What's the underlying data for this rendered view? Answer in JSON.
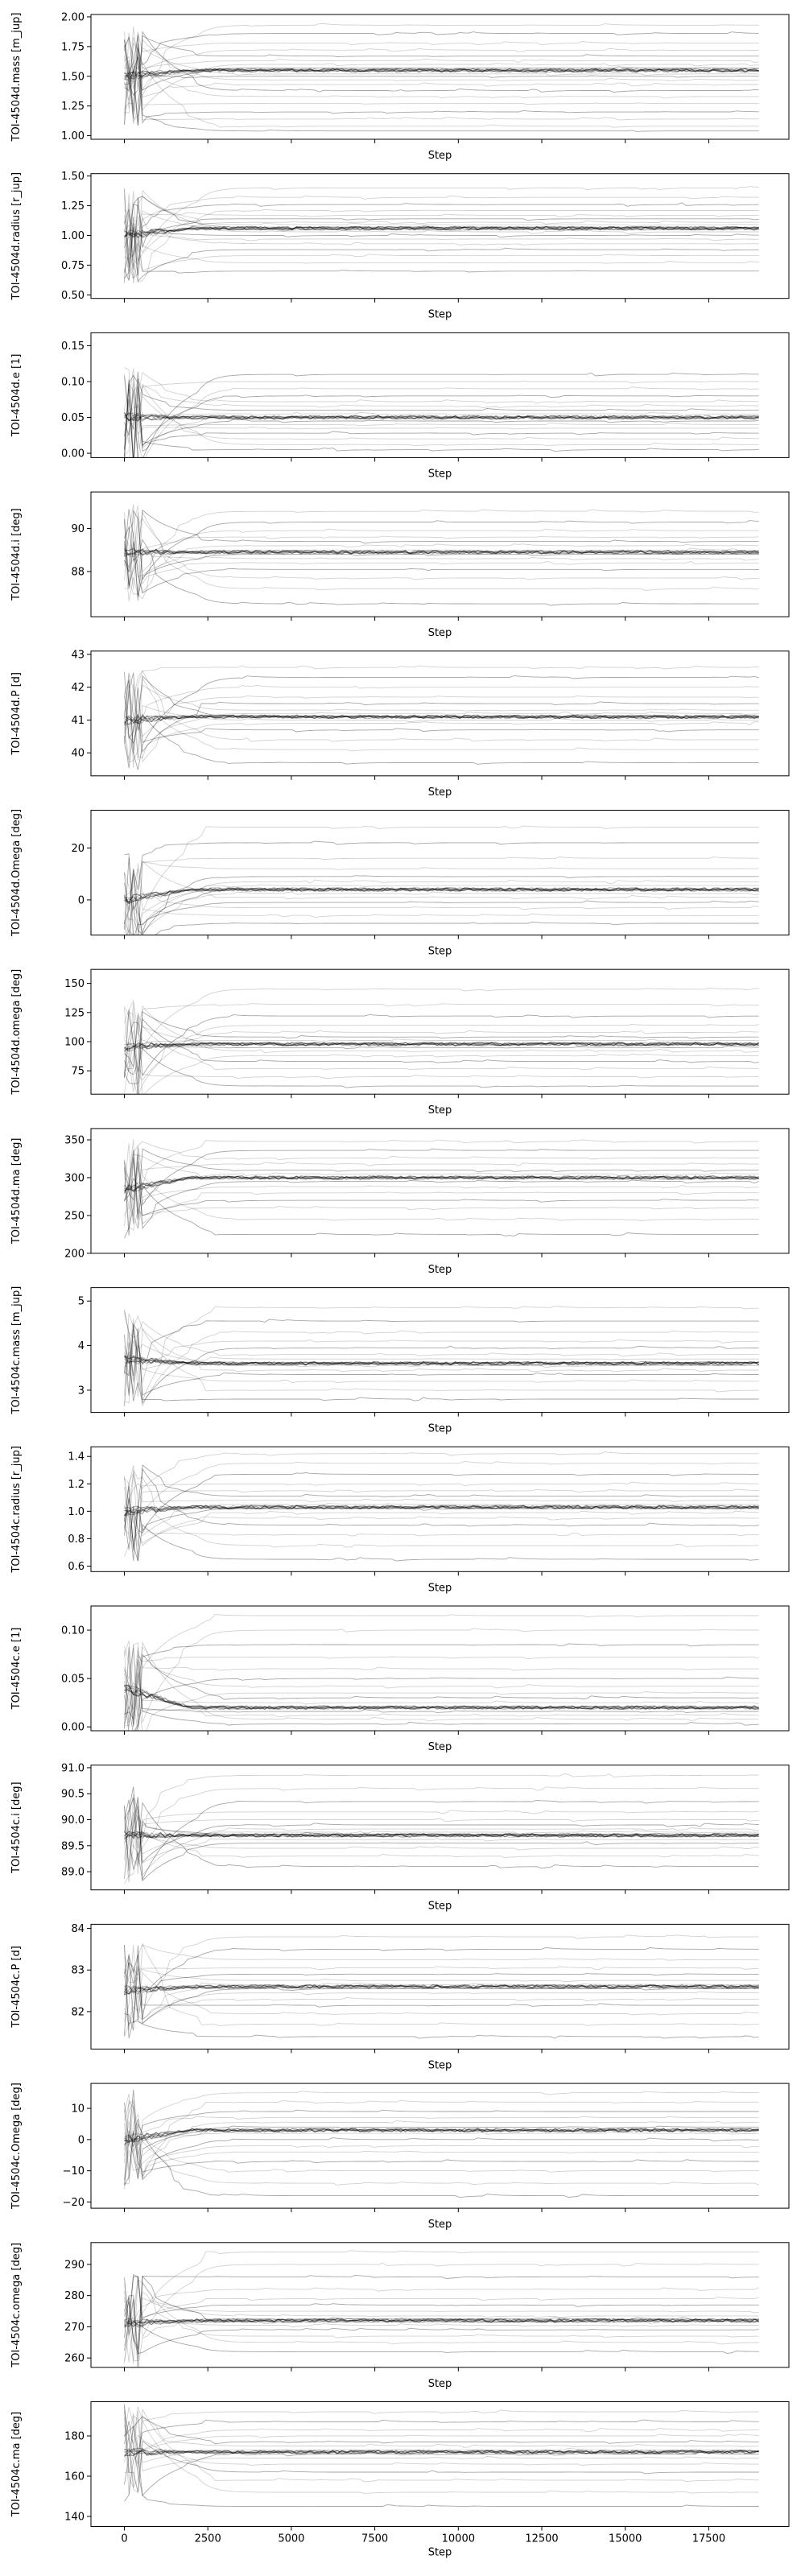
{
  "chart_data": [
    {
      "type": "line",
      "ylabel": "TOI-4504d.mass [m_jup]",
      "xlabel": "Step",
      "xlim": [
        -1000,
        19900
      ],
      "ylim": [
        0.97,
        2.02
      ],
      "xticks": [
        0,
        2500,
        5000,
        7500,
        10000,
        12500,
        15000,
        17500
      ],
      "xticklabels": [
        "",
        "",
        "",
        "",
        "",
        "",
        "",
        ""
      ],
      "yticks": [
        1.0,
        1.25,
        1.5,
        1.75,
        2.0
      ],
      "yticklabels": [
        "1.00",
        "1.25",
        "1.50",
        "1.75",
        "2.00"
      ],
      "center": 1.55,
      "start": 1.5,
      "walker_levels": [
        1.04,
        1.08,
        1.14,
        1.2,
        1.27,
        1.33,
        1.38,
        1.43,
        1.47,
        1.5,
        1.52,
        1.55,
        1.57,
        1.6,
        1.63,
        1.67,
        1.72,
        1.78,
        1.86,
        1.93
      ]
    },
    {
      "type": "line",
      "ylabel": "TOI-4504d.radius [r_jup]",
      "xlabel": "Step",
      "xlim": [
        -1000,
        19900
      ],
      "ylim": [
        0.47,
        1.52
      ],
      "xticks": [
        0,
        2500,
        5000,
        7500,
        10000,
        12500,
        15000,
        17500
      ],
      "xticklabels": [
        "",
        "",
        "",
        "",
        "",
        "",
        "",
        ""
      ],
      "yticks": [
        0.5,
        0.75,
        1.0,
        1.25,
        1.5
      ],
      "yticklabels": [
        "0.50",
        "0.75",
        "1.00",
        "1.25",
        "1.50"
      ],
      "center": 1.06,
      "start": 1.0,
      "walker_levels": [
        0.7,
        0.77,
        0.83,
        0.88,
        0.93,
        0.97,
        1.0,
        1.03,
        1.05,
        1.07,
        1.09,
        1.11,
        1.14,
        1.17,
        1.21,
        1.26,
        1.32,
        1.4
      ]
    },
    {
      "type": "line",
      "ylabel": "TOI-4504d.e [1]",
      "xlabel": "Step",
      "xlim": [
        -1000,
        19900
      ],
      "ylim": [
        -0.006,
        0.168
      ],
      "xticks": [
        0,
        2500,
        5000,
        7500,
        10000,
        12500,
        15000,
        17500
      ],
      "xticklabels": [
        "",
        "",
        "",
        "",
        "",
        "",
        "",
        ""
      ],
      "yticks": [
        0.0,
        0.05,
        0.1,
        0.15
      ],
      "yticklabels": [
        "0.00",
        "0.05",
        "0.10",
        "0.15"
      ],
      "center": 0.05,
      "start": 0.05,
      "walker_levels": [
        0.005,
        0.012,
        0.02,
        0.028,
        0.035,
        0.04,
        0.045,
        0.05,
        0.055,
        0.06,
        0.066,
        0.072,
        0.08,
        0.09,
        0.1,
        0.11
      ]
    },
    {
      "type": "line",
      "ylabel": "TOI-4504d.i [deg]",
      "xlabel": "Step",
      "xlim": [
        -1000,
        19900
      ],
      "ylim": [
        85.9,
        91.7
      ],
      "xticks": [
        0,
        2500,
        5000,
        7500,
        10000,
        12500,
        15000,
        17500
      ],
      "xticklabels": [
        "",
        "",
        "",
        "",
        "",
        "",
        "",
        ""
      ],
      "yticks": [
        88,
        90
      ],
      "yticklabels": [
        "88",
        "90"
      ],
      "center": 88.9,
      "start": 88.9,
      "walker_levels": [
        86.5,
        87.2,
        87.7,
        88.1,
        88.4,
        88.6,
        88.8,
        89.0,
        89.2,
        89.4,
        89.6,
        89.9,
        90.3,
        90.8
      ]
    },
    {
      "type": "line",
      "ylabel": "TOI-4504d.P [d]",
      "xlabel": "Step",
      "xlim": [
        -1000,
        19900
      ],
      "ylim": [
        39.3,
        43.1
      ],
      "xticks": [
        0,
        2500,
        5000,
        7500,
        10000,
        12500,
        15000,
        17500
      ],
      "xticklabels": [
        "",
        "",
        "",
        "",
        "",
        "",
        "",
        ""
      ],
      "yticks": [
        40,
        41,
        42,
        43
      ],
      "yticklabels": [
        "40",
        "41",
        "42",
        "43"
      ],
      "center": 41.1,
      "start": 41.0,
      "walker_levels": [
        39.7,
        40.1,
        40.4,
        40.7,
        40.9,
        41.0,
        41.1,
        41.2,
        41.3,
        41.5,
        41.7,
        42.0,
        42.3,
        42.6
      ]
    },
    {
      "type": "line",
      "ylabel": "TOI-4504d.Omega [deg]",
      "xlabel": "Step",
      "xlim": [
        -1000,
        19900
      ],
      "ylim": [
        -13.5,
        34.5
      ],
      "xticks": [
        0,
        2500,
        5000,
        7500,
        10000,
        12500,
        15000,
        17500
      ],
      "xticklabels": [
        "",
        "",
        "",
        "",
        "",
        "",
        "",
        ""
      ],
      "yticks": [
        0,
        20
      ],
      "yticklabels": [
        "0",
        "20"
      ],
      "center": 4.0,
      "start": 0.0,
      "walker_levels": [
        -9,
        -6,
        -3,
        -1,
        1,
        2.5,
        4,
        5.5,
        7,
        9,
        12,
        16,
        22,
        28
      ]
    },
    {
      "type": "line",
      "ylabel": "TOI-4504d.omega [deg]",
      "xlabel": "Step",
      "xlim": [
        -1000,
        19900
      ],
      "ylim": [
        55,
        162
      ],
      "xticks": [
        0,
        2500,
        5000,
        7500,
        10000,
        12500,
        15000,
        17500
      ],
      "xticklabels": [
        "",
        "",
        "",
        "",
        "",
        "",
        "",
        ""
      ],
      "yticks": [
        75,
        100,
        125,
        150
      ],
      "yticklabels": [
        "75",
        "100",
        "125",
        "150"
      ],
      "center": 98,
      "start": 95,
      "walker_levels": [
        62,
        70,
        77,
        83,
        88,
        92,
        95,
        98,
        101,
        104,
        108,
        114,
        122,
        132,
        145
      ]
    },
    {
      "type": "line",
      "ylabel": "TOI-4504d.ma [deg]",
      "xlabel": "Step",
      "xlim": [
        -1000,
        19900
      ],
      "ylim": [
        200,
        365
      ],
      "xticks": [
        0,
        2500,
        5000,
        7500,
        10000,
        12500,
        15000,
        17500
      ],
      "xticklabels": [
        "",
        "",
        "",
        "",
        "",
        "",
        "",
        ""
      ],
      "yticks": [
        200,
        250,
        300,
        350
      ],
      "yticklabels": [
        "200",
        "250",
        "300",
        "350"
      ],
      "center": 300,
      "start": 285,
      "walker_levels": [
        225,
        245,
        260,
        270,
        280,
        288,
        295,
        300,
        305,
        310,
        318,
        326,
        336,
        348
      ]
    },
    {
      "type": "line",
      "ylabel": "TOI-4504c.mass [m_jup]",
      "xlabel": "Step",
      "xlim": [
        -1000,
        19900
      ],
      "ylim": [
        2.5,
        5.3
      ],
      "xticks": [
        0,
        2500,
        5000,
        7500,
        10000,
        12500,
        15000,
        17500
      ],
      "xticklabels": [
        "",
        "",
        "",
        "",
        "",
        "",
        "",
        ""
      ],
      "yticks": [
        3,
        4,
        5
      ],
      "yticklabels": [
        "3",
        "4",
        "5"
      ],
      "center": 3.6,
      "start": 3.7,
      "walker_levels": [
        2.8,
        3.0,
        3.2,
        3.35,
        3.45,
        3.55,
        3.62,
        3.7,
        3.8,
        3.95,
        4.1,
        4.3,
        4.55,
        4.85
      ]
    },
    {
      "type": "line",
      "ylabel": "TOI-4504c.radius [r_jup]",
      "xlabel": "Step",
      "xlim": [
        -1000,
        19900
      ],
      "ylim": [
        0.56,
        1.47
      ],
      "xticks": [
        0,
        2500,
        5000,
        7500,
        10000,
        12500,
        15000,
        17500
      ],
      "xticklabels": [
        "",
        "",
        "",
        "",
        "",
        "",
        "",
        ""
      ],
      "yticks": [
        0.6,
        0.8,
        1.0,
        1.2,
        1.4
      ],
      "yticklabels": [
        "0.6",
        "0.8",
        "1.0",
        "1.2",
        "1.4"
      ],
      "center": 1.03,
      "start": 1.0,
      "walker_levels": [
        0.65,
        0.75,
        0.83,
        0.9,
        0.95,
        0.99,
        1.02,
        1.05,
        1.08,
        1.11,
        1.15,
        1.2,
        1.27,
        1.35,
        1.42
      ]
    },
    {
      "type": "line",
      "ylabel": "TOI-4504c.e [1]",
      "xlabel": "Step",
      "xlim": [
        -1000,
        19900
      ],
      "ylim": [
        -0.004,
        0.125
      ],
      "xticks": [
        0,
        2500,
        5000,
        7500,
        10000,
        12500,
        15000,
        17500
      ],
      "xticklabels": [
        "",
        "",
        "",
        "",
        "",
        "",
        "",
        ""
      ],
      "yticks": [
        0.0,
        0.05,
        0.1
      ],
      "yticklabels": [
        "0.00",
        "0.05",
        "0.10"
      ],
      "center": 0.02,
      "start": 0.04,
      "walker_levels": [
        0.003,
        0.008,
        0.012,
        0.016,
        0.02,
        0.025,
        0.03,
        0.035,
        0.042,
        0.05,
        0.06,
        0.072,
        0.085,
        0.1,
        0.115
      ]
    },
    {
      "type": "line",
      "ylabel": "TOI-4504c.i [deg]",
      "xlabel": "Step",
      "xlim": [
        -1000,
        19900
      ],
      "ylim": [
        88.65,
        91.05
      ],
      "xticks": [
        0,
        2500,
        5000,
        7500,
        10000,
        12500,
        15000,
        17500
      ],
      "xticklabels": [
        "",
        "",
        "",
        "",
        "",
        "",
        "",
        ""
      ],
      "yticks": [
        89.0,
        89.5,
        90.0,
        90.5,
        91.0
      ],
      "yticklabels": [
        "89.0",
        "89.5",
        "90.0",
        "90.5",
        "91.0"
      ],
      "center": 89.7,
      "start": 89.7,
      "walker_levels": [
        89.1,
        89.3,
        89.45,
        89.55,
        89.62,
        89.68,
        89.72,
        89.76,
        89.82,
        89.9,
        90.0,
        90.15,
        90.35,
        90.6,
        90.85
      ]
    },
    {
      "type": "line",
      "ylabel": "TOI-4504c.P [d]",
      "xlabel": "Step",
      "xlim": [
        -1000,
        19900
      ],
      "ylim": [
        81.1,
        84.1
      ],
      "xticks": [
        0,
        2500,
        5000,
        7500,
        10000,
        12500,
        15000,
        17500
      ],
      "xticklabels": [
        "",
        "",
        "",
        "",
        "",
        "",
        "",
        ""
      ],
      "yticks": [
        82,
        83,
        84
      ],
      "yticklabels": [
        "82",
        "83",
        "84"
      ],
      "center": 82.6,
      "start": 82.5,
      "walker_levels": [
        81.4,
        81.7,
        81.95,
        82.15,
        82.3,
        82.45,
        82.55,
        82.65,
        82.75,
        82.9,
        83.05,
        83.25,
        83.5,
        83.8
      ]
    },
    {
      "type": "line",
      "ylabel": "TOI-4504c.Omega [deg]",
      "xlabel": "Step",
      "xlim": [
        -1000,
        19900
      ],
      "ylim": [
        -22,
        18
      ],
      "xticks": [
        0,
        2500,
        5000,
        7500,
        10000,
        12500,
        15000,
        17500
      ],
      "xticklabels": [
        "",
        "",
        "",
        "",
        "",
        "",
        "",
        ""
      ],
      "yticks": [
        -20,
        -10,
        0,
        10
      ],
      "yticklabels": [
        "−20",
        "−10",
        "0",
        "10"
      ],
      "center": 3.0,
      "start": 0.0,
      "walker_levels": [
        -18,
        -14,
        -10,
        -7,
        -4,
        -2,
        0,
        2,
        3,
        4,
        5.5,
        7,
        9,
        12,
        15
      ]
    },
    {
      "type": "line",
      "ylabel": "TOI-4504c.omega [deg]",
      "xlabel": "Step",
      "xlim": [
        -1000,
        19900
      ],
      "ylim": [
        257,
        297
      ],
      "xticks": [
        0,
        2500,
        5000,
        7500,
        10000,
        12500,
        15000,
        17500
      ],
      "xticklabels": [
        "",
        "",
        "",
        "",
        "",
        "",
        "",
        ""
      ],
      "yticks": [
        260,
        270,
        280,
        290
      ],
      "yticklabels": [
        "260",
        "270",
        "280",
        "290"
      ],
      "center": 272,
      "start": 271,
      "walker_levels": [
        262,
        265,
        267,
        269,
        270.5,
        271.5,
        272.5,
        273.5,
        275,
        277,
        279,
        282,
        286,
        290,
        294
      ]
    },
    {
      "type": "line",
      "ylabel": "TOI-4504c.ma [deg]",
      "xlabel": "Step",
      "xlim": [
        -1000,
        19900
      ],
      "ylim": [
        135,
        197
      ],
      "xticks": [
        0,
        2500,
        5000,
        7500,
        10000,
        12500,
        15000,
        17500
      ],
      "xticklabels": [
        "0",
        "2500",
        "5000",
        "7500",
        "10000",
        "12500",
        "15000",
        "17500"
      ],
      "yticks": [
        140,
        160,
        180
      ],
      "yticklabels": [
        "140",
        "160",
        "180"
      ],
      "center": 172,
      "start": 172,
      "walker_levels": [
        145,
        152,
        158,
        162,
        166,
        169,
        171,
        173,
        175,
        177,
        180,
        183,
        187,
        192
      ]
    }
  ]
}
